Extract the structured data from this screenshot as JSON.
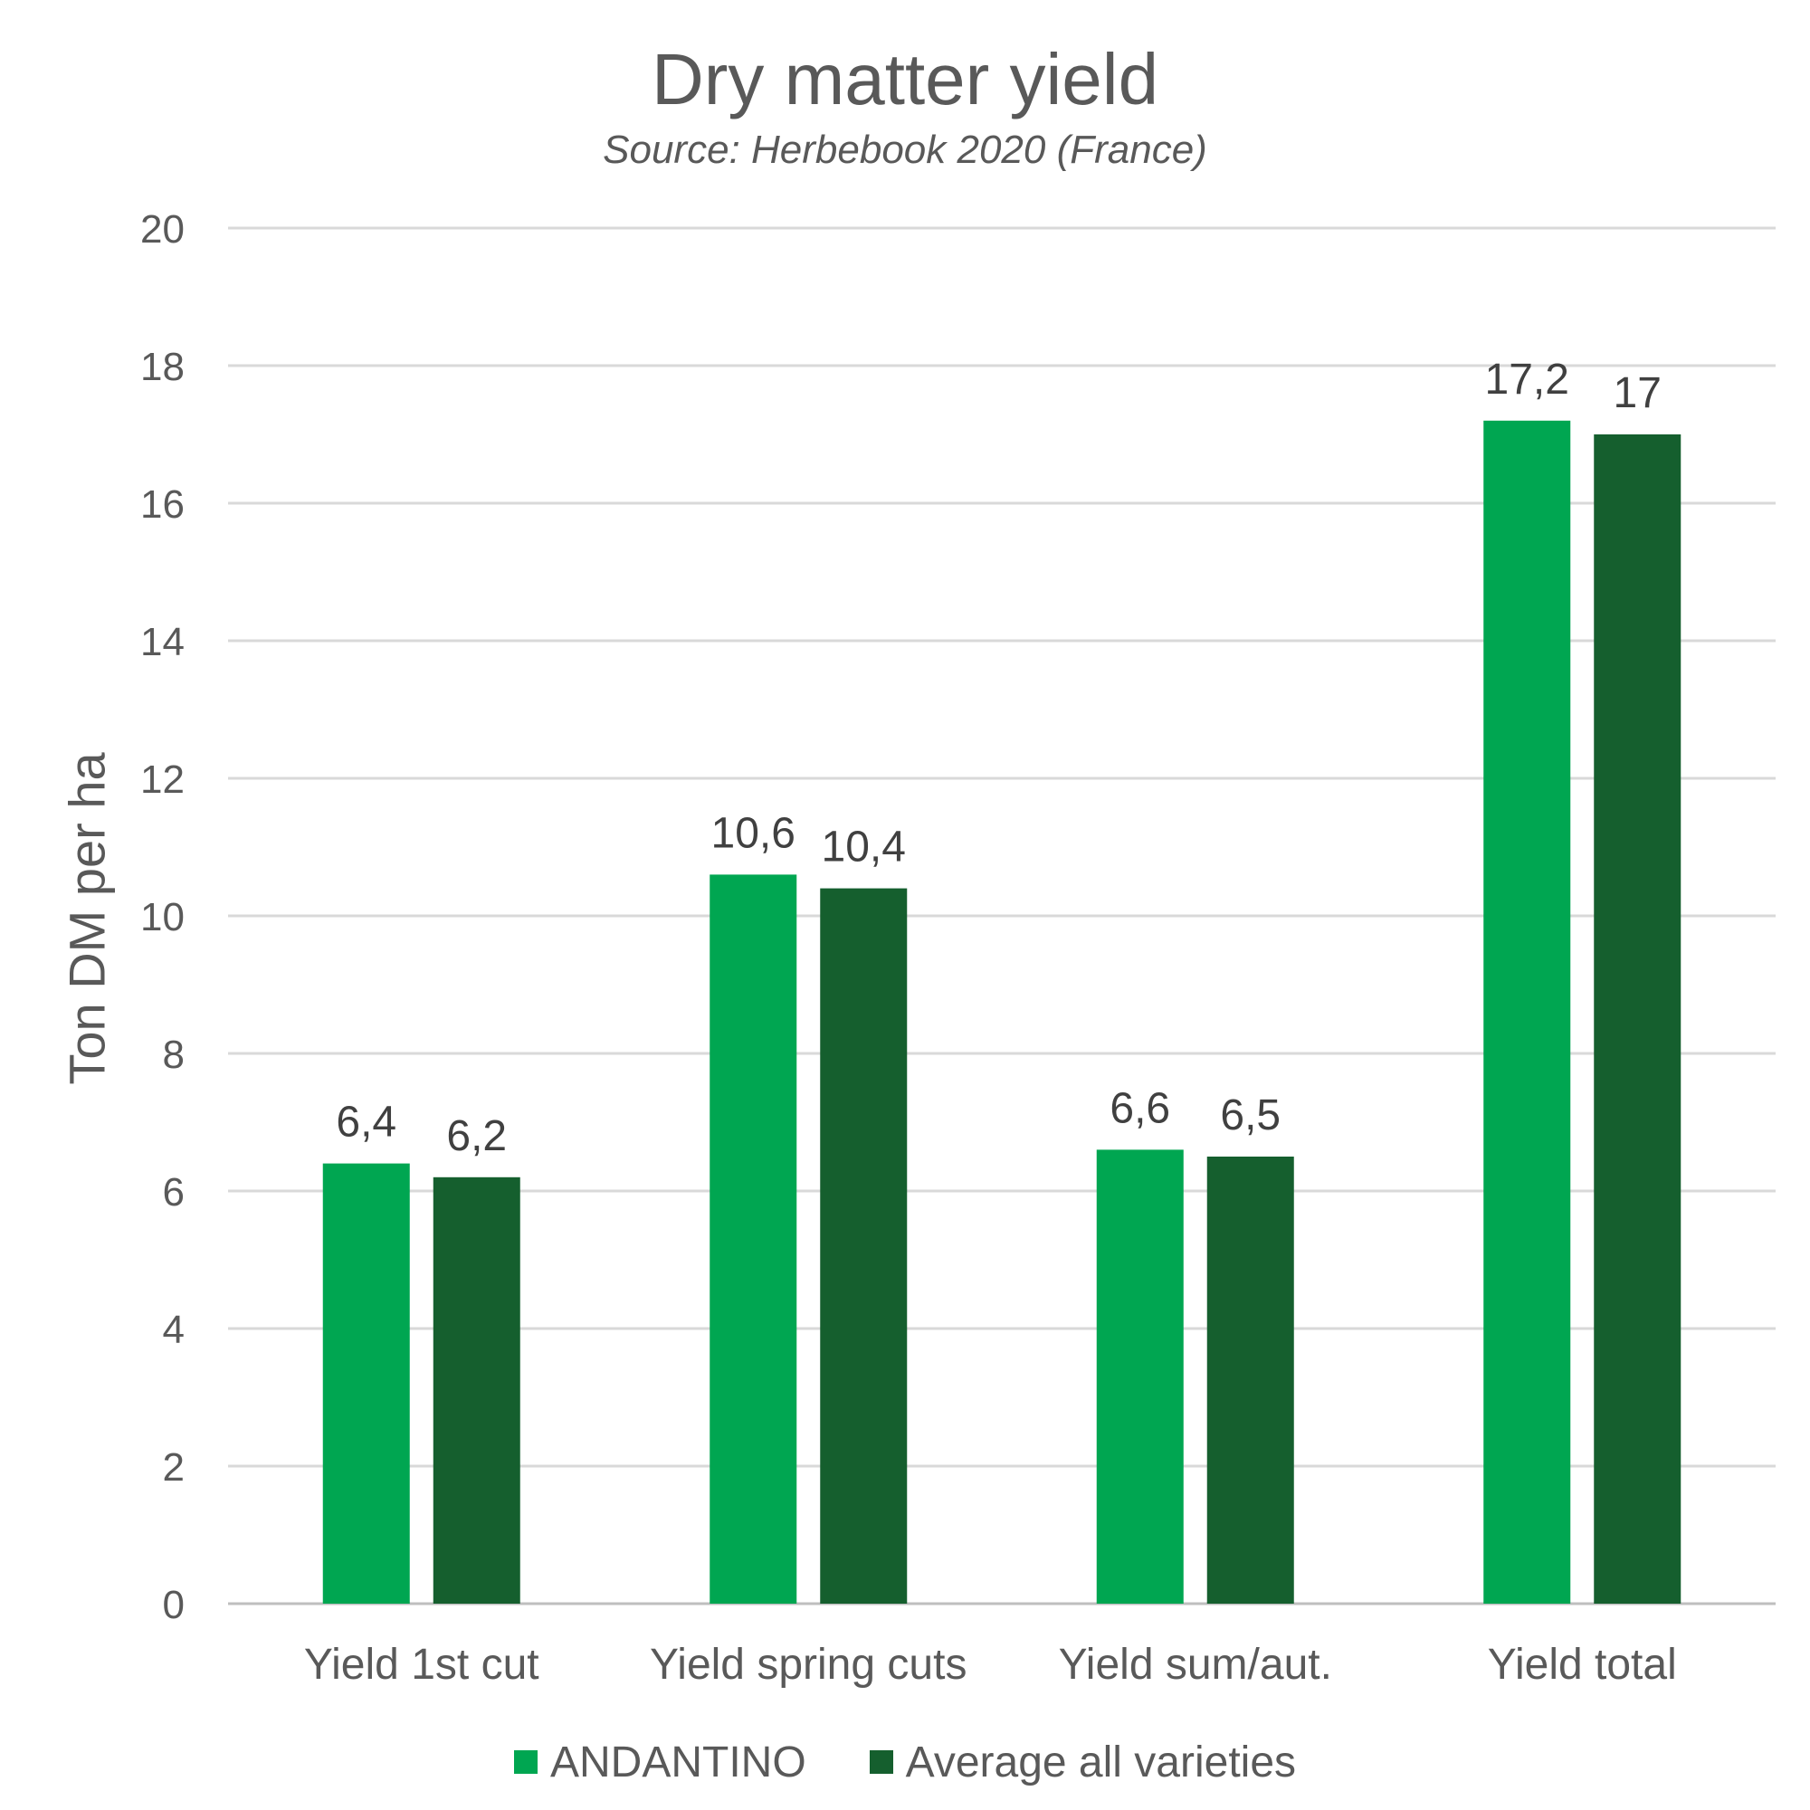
{
  "chart_data": {
    "type": "bar",
    "title": "Dry matter yield",
    "subtitle": "Source: Herbebook 2020 (France)",
    "xlabel": "",
    "ylabel": "Ton DM per ha",
    "ylim": [
      0,
      20
    ],
    "yticks": [
      0,
      2,
      4,
      6,
      8,
      10,
      12,
      14,
      16,
      18,
      20
    ],
    "grid": true,
    "legend_position": "bottom",
    "categories": [
      "Yield 1st cut",
      "Yield spring cuts",
      "Yield sum/aut.",
      "Yield total"
    ],
    "series": [
      {
        "name": "ANDANTINO",
        "color": "#00a651",
        "values": [
          6.4,
          10.6,
          6.6,
          17.2
        ],
        "labels": [
          "6,4",
          "10,6",
          "6,6",
          "17,2"
        ]
      },
      {
        "name": "Average all varieties",
        "color": "#155f2e",
        "values": [
          6.2,
          10.4,
          6.5,
          17
        ],
        "labels": [
          "6,2",
          "10,4",
          "6,5",
          "17"
        ]
      }
    ]
  }
}
